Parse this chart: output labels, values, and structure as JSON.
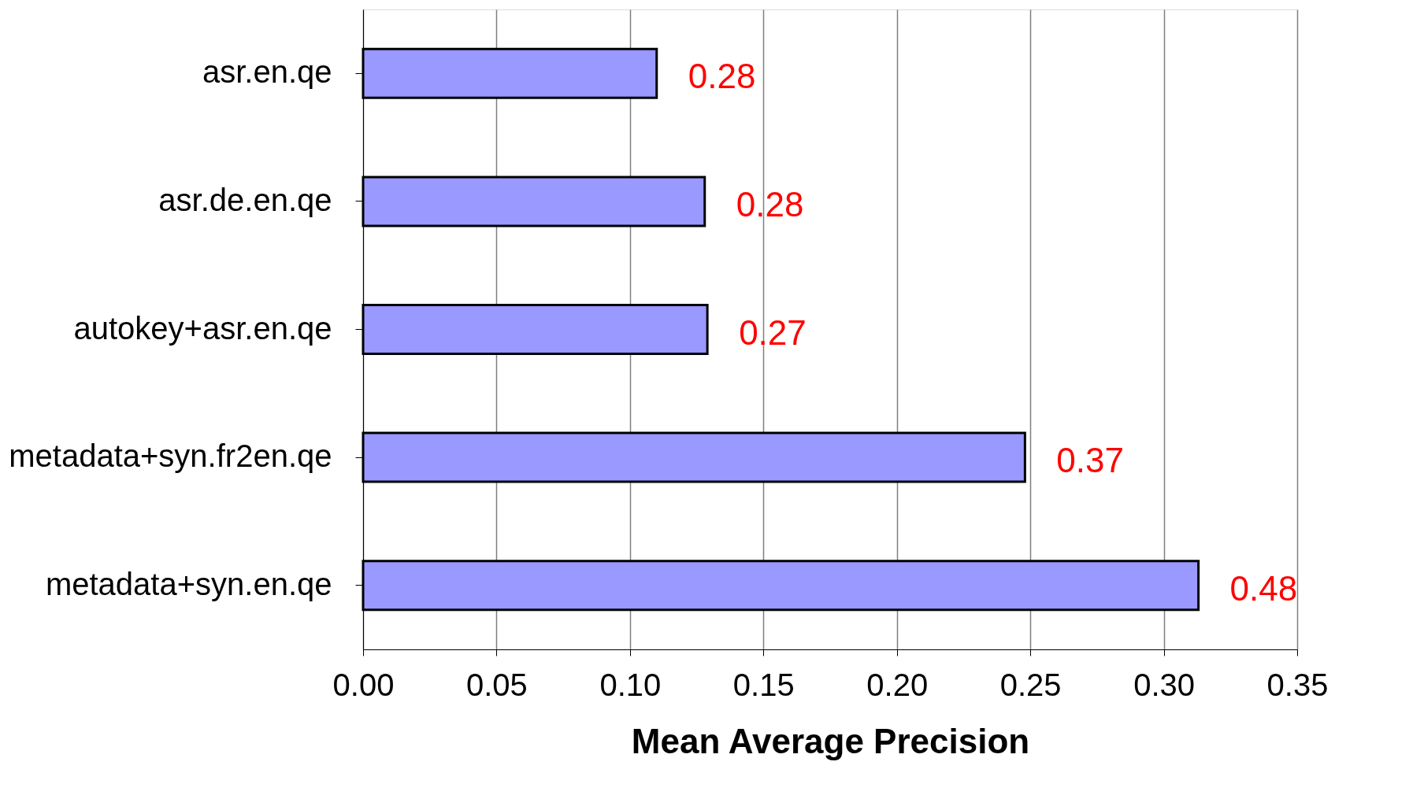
{
  "chart_data": {
    "type": "bar",
    "orientation": "horizontal",
    "xlabel": "Mean Average Precision",
    "categories": [
      "asr.en.qe",
      "asr.de.en.qe",
      "autokey+asr.en.qe",
      "metadata+syn.fr2en.qe",
      "metadata+syn.en.qe"
    ],
    "values": [
      0.11,
      0.128,
      0.129,
      0.248,
      0.313
    ],
    "color": "#9999ff",
    "xlim": [
      0,
      0.35
    ],
    "xticks": [
      {
        "value": 0,
        "label": "0.00"
      },
      {
        "value": 0.05,
        "label": "0.05"
      },
      {
        "value": 0.1,
        "label": "0.10"
      },
      {
        "value": 0.15,
        "label": "0.15"
      },
      {
        "value": 0.2,
        "label": "0.20"
      },
      {
        "value": 0.25,
        "label": "0.25"
      },
      {
        "value": 0.3,
        "label": "0.30"
      },
      {
        "value": 0.35,
        "label": "0.35"
      }
    ],
    "annotations": [
      "0.28",
      "0.28",
      "0.27",
      "0.37",
      "0.48"
    ],
    "grid": "x"
  }
}
